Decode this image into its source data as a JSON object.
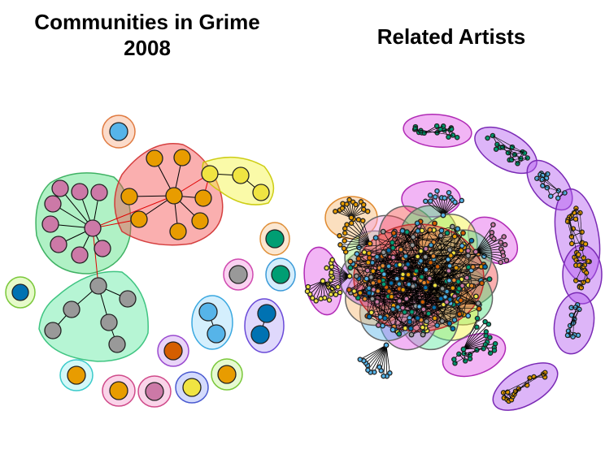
{
  "titles": {
    "left_line1": "Communities in Grime",
    "left_line2": "2008",
    "right": "Related Artists"
  },
  "colors": {
    "green_hull": "#4fe07f",
    "red_hull": "#f34d4d",
    "yellow_hull": "#f4f43e",
    "mint_hull": "#5de8a0",
    "orange_node": "#e89c00",
    "pink_node": "#cc79a7",
    "grey_node": "#999999",
    "yellow_node": "#f0e442",
    "sky_node": "#56b4e9",
    "blue_node": "#0072b2",
    "vermillion_node": "#d55e00",
    "teal_node": "#009e73",
    "purple_hull": "#b35cf0",
    "magenta_hull": "#e35ce8",
    "edge_red": "#e00000",
    "edge_black": "#000000"
  }
}
